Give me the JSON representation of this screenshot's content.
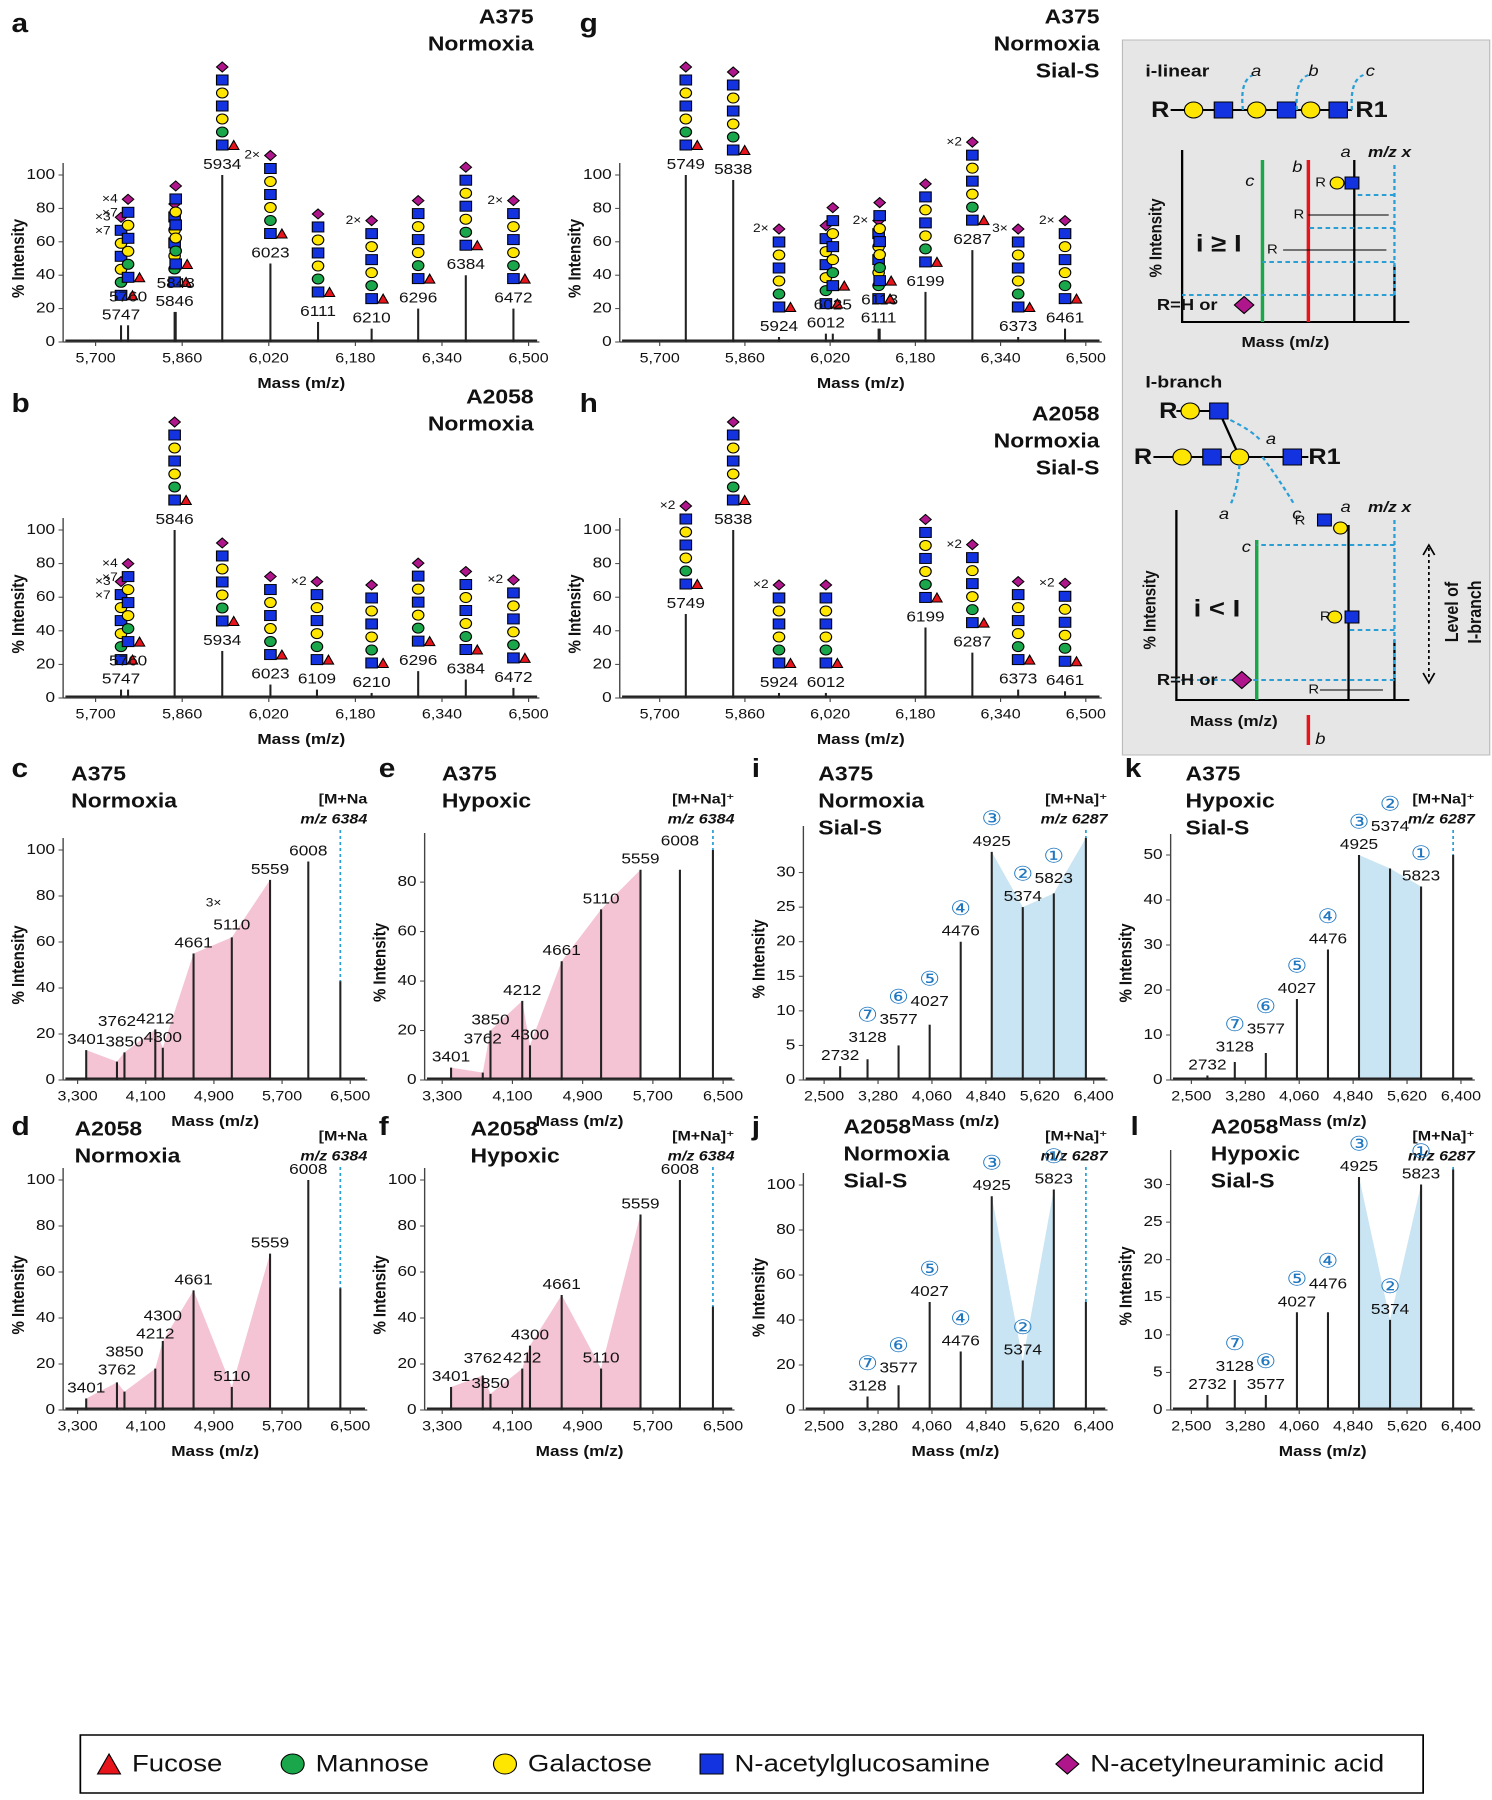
{
  "chart_data": [
    {
      "type": "spectrum",
      "letter": "a",
      "title": [
        "A375",
        "Normoxia"
      ],
      "x_label": "Mass (m/z)",
      "y_label": "% Intensity",
      "color": "#222222",
      "x": [
        5747,
        5760,
        5846,
        5848,
        5934,
        6023,
        6111,
        6210,
        6296,
        6384,
        6472
      ],
      "values": [
        10,
        10,
        18,
        18,
        100,
        47,
        12,
        8,
        20,
        40,
        20
      ],
      "notes": [
        [
          "×3",
          "×7"
        ],
        [
          "×4",
          "×7"
        ],
        null,
        null,
        null,
        [
          "2×"
        ],
        null,
        [
          "2×"
        ],
        null,
        null,
        [
          "2×"
        ]
      ],
      "xlim": [
        5640,
        6520
      ],
      "ylim": [
        0,
        100
      ],
      "xticks": [
        {
          "value": 5700,
          "label": "5,700"
        },
        {
          "value": 5860,
          "label": "5,860"
        },
        {
          "value": 6020,
          "label": "6,020"
        },
        {
          "value": 6180,
          "label": "6,180"
        },
        {
          "value": 6340,
          "label": "6,340"
        },
        {
          "value": 6500,
          "label": "6,500"
        }
      ],
      "yticks": [
        0,
        20,
        40,
        60,
        80,
        100
      ]
    },
    {
      "type": "spectrum",
      "letter": "b",
      "title": [
        "A2058",
        "Normoxia"
      ],
      "x_label": "Mass (m/z)",
      "y_label": "% Intensity",
      "color": "#222222",
      "x": [
        5747,
        5760,
        5846,
        5934,
        6023,
        6109,
        6210,
        6296,
        6384,
        6472
      ],
      "values": [
        5,
        5,
        100,
        28,
        8,
        5,
        3,
        16,
        11,
        6
      ],
      "notes": [
        [
          "×3",
          "×7"
        ],
        [
          "×4",
          "×7"
        ],
        null,
        null,
        null,
        [
          "×2"
        ],
        null,
        null,
        null,
        [
          "×2"
        ]
      ],
      "xlim": [
        5640,
        6520
      ],
      "ylim": [
        0,
        100
      ],
      "xticks": [
        {
          "value": 5700,
          "label": "5,700"
        },
        {
          "value": 5860,
          "label": "5,860"
        },
        {
          "value": 6020,
          "label": "6,020"
        },
        {
          "value": 6180,
          "label": "6,180"
        },
        {
          "value": 6340,
          "label": "6,340"
        },
        {
          "value": 6500,
          "label": "6,500"
        }
      ],
      "yticks": [
        0,
        20,
        40,
        60,
        80,
        100
      ]
    },
    {
      "type": "spectrum",
      "letter": "c",
      "title": [
        "A375",
        "Normoxia"
      ],
      "ion": [
        "[M+Na",
        "m/z 6384"
      ],
      "x_label": "Mass (m/z)",
      "y_label": "% Intensity",
      "color": "#222222",
      "x": [
        3401,
        3762,
        3850,
        4212,
        4300,
        4661,
        5110,
        5559,
        6008,
        6384
      ],
      "values": [
        13,
        8,
        12,
        22,
        14,
        55,
        62,
        87,
        95,
        43
      ],
      "notes": [
        null,
        null,
        null,
        null,
        null,
        null,
        [
          "3×"
        ],
        null,
        null,
        null
      ],
      "shade": {
        "color": "#f2b8cd",
        "range": [
          3401,
          5559
        ]
      },
      "xlim": [
        3130,
        6700
      ],
      "ylim": [
        0,
        100
      ],
      "xticks": [
        {
          "value": 3300,
          "label": "3,300"
        },
        {
          "value": 4100,
          "label": "4,100"
        },
        {
          "value": 4900,
          "label": "4,900"
        },
        {
          "value": 5700,
          "label": "5,700"
        },
        {
          "value": 6500,
          "label": "6,500"
        }
      ],
      "yticks": [
        0,
        20,
        40,
        60,
        80,
        100
      ]
    },
    {
      "type": "spectrum",
      "letter": "d",
      "title": [
        "A2058",
        "Normoxia"
      ],
      "ion": [
        "[M+Na",
        "m/z 6384"
      ],
      "x_label": "Mass (m/z)",
      "y_label": "% Intensity",
      "color": "#222222",
      "x": [
        3401,
        3762,
        3850,
        4212,
        4300,
        4661,
        5110,
        5559,
        6008,
        6384
      ],
      "values": [
        5,
        12,
        8,
        18,
        30,
        52,
        10,
        68,
        100,
        53
      ],
      "shade": {
        "color": "#f2b8cd",
        "range": [
          3401,
          5559
        ]
      },
      "xlim": [
        3130,
        6700
      ],
      "ylim": [
        0,
        100
      ],
      "xticks": [
        {
          "value": 3300,
          "label": "3,300"
        },
        {
          "value": 4100,
          "label": "4,100"
        },
        {
          "value": 4900,
          "label": "4,900"
        },
        {
          "value": 5700,
          "label": "5,700"
        },
        {
          "value": 6500,
          "label": "6,500"
        }
      ],
      "yticks": [
        0,
        20,
        40,
        60,
        80,
        100
      ]
    },
    {
      "type": "spectrum",
      "letter": "e",
      "title": [
        "A375",
        "Hypoxic"
      ],
      "ion": [
        "[M+Na]⁺",
        "m/z 6384"
      ],
      "x_label": "Mass (m/z)",
      "y_label": "% Intensity",
      "color": "#222222",
      "x": [
        3401,
        3762,
        3850,
        4212,
        4300,
        4661,
        5110,
        5559,
        6008,
        6384
      ],
      "values": [
        5,
        3,
        20,
        32,
        14,
        48,
        69,
        85,
        85,
        93
      ],
      "shade": {
        "color": "#f2b8cd",
        "range": [
          3401,
          5559
        ]
      },
      "xlim": [
        3100,
        6630
      ],
      "ylim": [
        0,
        95
      ],
      "xticks": [
        {
          "value": 3300,
          "label": "3,300"
        },
        {
          "value": 4100,
          "label": "4,100"
        },
        {
          "value": 4900,
          "label": "4,900"
        },
        {
          "value": 5700,
          "label": "5,700"
        },
        {
          "value": 6500,
          "label": "6,500"
        }
      ],
      "yticks": [
        0,
        20,
        40,
        60,
        80
      ]
    },
    {
      "type": "spectrum",
      "letter": "f",
      "title": [
        "A2058",
        "Hypoxic"
      ],
      "ion": [
        "[M+Na]⁺",
        "m/z 6384"
      ],
      "x_label": "Mass (m/z)",
      "y_label": "% Intensity",
      "color": "#222222",
      "x": [
        3401,
        3762,
        3850,
        4212,
        4300,
        4661,
        5110,
        5559,
        6008,
        6384
      ],
      "values": [
        10,
        15,
        7,
        18,
        28,
        50,
        18,
        85,
        100,
        45
      ],
      "shade": {
        "color": "#f2b8cd",
        "range": [
          3401,
          5559
        ]
      },
      "xlim": [
        3100,
        6630
      ],
      "ylim": [
        0,
        100
      ],
      "xticks": [
        {
          "value": 3300,
          "label": "3,300"
        },
        {
          "value": 4100,
          "label": "4,100"
        },
        {
          "value": 4900,
          "label": "4,900"
        },
        {
          "value": 5700,
          "label": "5,700"
        },
        {
          "value": 6500,
          "label": "6,500"
        }
      ],
      "yticks": [
        0,
        20,
        40,
        60,
        80,
        100
      ]
    },
    {
      "type": "spectrum",
      "letter": "g",
      "title": [
        "A375",
        "Normoxia",
        "Sial-S"
      ],
      "x_label": "Mass (m/z)",
      "y_label": "% Intensity",
      "color": "#222222",
      "x": [
        5749,
        5838,
        5924,
        6012,
        6025,
        6111,
        6113,
        6199,
        6287,
        6373,
        6461
      ],
      "values": [
        100,
        97,
        3,
        5,
        5,
        8,
        8,
        30,
        55,
        3,
        8
      ],
      "notes": [
        null,
        null,
        [
          "2×"
        ],
        null,
        null,
        [
          "2×"
        ],
        null,
        null,
        [
          "×2"
        ],
        [
          "3×"
        ],
        [
          "2×"
        ]
      ],
      "xlim": [
        5625,
        6530
      ],
      "ylim": [
        0,
        100
      ],
      "xticks": [
        {
          "value": 5700,
          "label": "5,700"
        },
        {
          "value": 5860,
          "label": "5,860"
        },
        {
          "value": 6020,
          "label": "6,020"
        },
        {
          "value": 6180,
          "label": "6,180"
        },
        {
          "value": 6340,
          "label": "6,340"
        },
        {
          "value": 6500,
          "label": "6,500"
        }
      ],
      "yticks": [
        0,
        20,
        40,
        60,
        80,
        100
      ]
    },
    {
      "type": "spectrum",
      "letter": "h",
      "title": [
        "A2058",
        "Normoxia",
        "Sial-S"
      ],
      "x_label": "Mass (m/z)",
      "y_label": "% Intensity",
      "color": "#222222",
      "x": [
        5749,
        5838,
        5924,
        6012,
        6199,
        6287,
        6373,
        6461
      ],
      "values": [
        50,
        100,
        3,
        3,
        42,
        27,
        5,
        4
      ],
      "notes": [
        [
          "×2"
        ],
        null,
        [
          "×2"
        ],
        null,
        null,
        [
          "×2"
        ],
        null,
        [
          "×2"
        ]
      ],
      "xlim": [
        5625,
        6530
      ],
      "ylim": [
        0,
        100
      ],
      "xticks": [
        {
          "value": 5700,
          "label": "5,700"
        },
        {
          "value": 5860,
          "label": "5,860"
        },
        {
          "value": 6020,
          "label": "6,020"
        },
        {
          "value": 6180,
          "label": "6,180"
        },
        {
          "value": 6340,
          "label": "6,340"
        },
        {
          "value": 6500,
          "label": "6,500"
        }
      ],
      "yticks": [
        0,
        20,
        40,
        60,
        80,
        100
      ]
    },
    {
      "type": "spectrum",
      "letter": "i",
      "title": [
        "A375",
        "Normoxia",
        "Sial-S"
      ],
      "ion": [
        "[M+Na]⁺",
        "m/z 6287"
      ],
      "x_label": "Mass (m/z)",
      "y_label": "% Intensity",
      "color": "#222222",
      "x": [
        2732,
        3128,
        3577,
        4027,
        4476,
        4925,
        5374,
        5823,
        6287
      ],
      "values": [
        2,
        3,
        5,
        8,
        20,
        33,
        25,
        27,
        35
      ],
      "tags": [
        null,
        "⑦",
        "⑥",
        "⑤",
        "④",
        "③",
        "②",
        "①",
        null
      ],
      "shade": {
        "color": "#bfdff0",
        "range": [
          4925,
          6287
        ]
      },
      "xlim": [
        2200,
        6600
      ],
      "ylim": [
        0,
        35
      ],
      "xticks": [
        {
          "value": 2500,
          "label": "2,500"
        },
        {
          "value": 3280,
          "label": "3,280"
        },
        {
          "value": 4060,
          "label": "4,060"
        },
        {
          "value": 4840,
          "label": "4,840"
        },
        {
          "value": 5620,
          "label": "5,620"
        },
        {
          "value": 6400,
          "label": "6,400"
        }
      ],
      "yticks": [
        0,
        5,
        10,
        15,
        20,
        25,
        30
      ]
    },
    {
      "type": "spectrum",
      "letter": "j",
      "title": [
        "A2058",
        "Normoxia",
        "Sial-S"
      ],
      "ion": [
        "[M+Na]⁺",
        "m/z 6287"
      ],
      "x_label": "Mass (m/z)",
      "y_label": "% Intensity",
      "color": "#222222",
      "x": [
        3128,
        3577,
        4027,
        4476,
        4925,
        5374,
        5823,
        6287
      ],
      "values": [
        6,
        11,
        48,
        26,
        95,
        22,
        98,
        48
      ],
      "tags": [
        "⑦",
        "⑥",
        "⑤",
        "④",
        "③",
        "②",
        "①",
        null
      ],
      "shade": {
        "color": "#bfdff0",
        "range": [
          4925,
          5823
        ]
      },
      "xlim": [
        2200,
        6600
      ],
      "ylim": [
        0,
        100
      ],
      "xticks": [
        {
          "value": 2500,
          "label": "2,500"
        },
        {
          "value": 3280,
          "label": "3,280"
        },
        {
          "value": 4060,
          "label": "4,060"
        },
        {
          "value": 4840,
          "label": "4,840"
        },
        {
          "value": 5620,
          "label": "5,620"
        },
        {
          "value": 6400,
          "label": "6,400"
        }
      ],
      "yticks": [
        0,
        20,
        40,
        60,
        80,
        100
      ]
    },
    {
      "type": "spectrum",
      "letter": "k",
      "title": [
        "A375",
        "Hypoxic",
        "Sial-S"
      ],
      "ion": [
        "[M+Na]⁺",
        "m/z 6287"
      ],
      "x_label": "Mass (m/z)",
      "y_label": "% Intensity",
      "color": "#222222",
      "x": [
        2732,
        3128,
        3577,
        4027,
        4476,
        4925,
        5374,
        5823,
        6287
      ],
      "values": [
        1,
        4,
        6,
        18,
        29,
        50,
        47,
        43,
        50
      ],
      "tags": [
        null,
        "⑦",
        "⑥",
        "⑤",
        "④",
        "③",
        "②",
        "①",
        null
      ],
      "shade": {
        "color": "#bfdff0",
        "range": [
          4925,
          5823
        ]
      },
      "xlim": [
        2200,
        6600
      ],
      "ylim": [
        0,
        52
      ],
      "xticks": [
        {
          "value": 2500,
          "label": "2,500"
        },
        {
          "value": 3280,
          "label": "3,280"
        },
        {
          "value": 4060,
          "label": "4,060"
        },
        {
          "value": 4840,
          "label": "4,840"
        },
        {
          "value": 5620,
          "label": "5,620"
        },
        {
          "value": 6400,
          "label": "6,400"
        }
      ],
      "yticks": [
        0,
        10,
        20,
        30,
        40,
        50
      ]
    },
    {
      "type": "spectrum",
      "letter": "l",
      "title": [
        "A2058",
        "Hypoxic",
        "Sial-S"
      ],
      "ion": [
        "[M+Na]⁺",
        "m/z 6287"
      ],
      "x_label": "Mass (m/z)",
      "y_label": "% Intensity",
      "color": "#222222",
      "x": [
        2732,
        3128,
        3577,
        4027,
        4476,
        4925,
        5374,
        5823,
        6287
      ],
      "values": [
        2,
        4,
        2,
        13,
        13,
        31,
        12,
        30,
        32
      ],
      "tags": [
        null,
        "⑦",
        "⑥",
        "⑤",
        "④",
        "③",
        "②",
        "①",
        null
      ],
      "shade": {
        "color": "#bfdff0",
        "range": [
          4925,
          5823
        ]
      },
      "xlim": [
        2200,
        6600
      ],
      "ylim": [
        0,
        33
      ],
      "xticks": [
        {
          "value": 2500,
          "label": "2,500"
        },
        {
          "value": 3280,
          "label": "3,280"
        },
        {
          "value": 4060,
          "label": "4,060"
        },
        {
          "value": 4840,
          "label": "4,840"
        },
        {
          "value": 5620,
          "label": "5,620"
        },
        {
          "value": 6400,
          "label": "6,400"
        }
      ],
      "yticks": [
        0,
        5,
        10,
        15,
        20,
        25,
        30
      ]
    }
  ],
  "schematic": {
    "linear": {
      "title": "i-linear",
      "cuts": [
        "a",
        "b",
        "c"
      ],
      "r": "R",
      "r1": "R1",
      "plot": {
        "y_label": "% Intensity",
        "x_label": "Mass (m/z)",
        "rule": "i ≥ I",
        "lines": [
          "c",
          "b",
          "a",
          "m/z x"
        ],
        "r_groups": [
          "R",
          "R",
          "R"
        ],
        "r_note": "R=H or"
      }
    },
    "branch": {
      "title": "I-branch",
      "r_groups": [
        "R",
        "R"
      ],
      "r1": "R1",
      "cuts": [
        "a",
        "a",
        "c"
      ],
      "plot": {
        "y_label": "% Intensity",
        "x_label": "Mass (m/z)",
        "rule": "i < I",
        "lines": [
          "a",
          "m/z x",
          "c",
          "b"
        ],
        "r_groups": [
          "R",
          "R",
          "R"
        ],
        "r_note": "R=H or",
        "side": [
          "Level of",
          "I-branch"
        ]
      }
    }
  },
  "legend": [
    {
      "name": "Fucose",
      "color": "#e8141b",
      "shape": "triangle"
    },
    {
      "name": "Mannose",
      "color": "#1aa64a",
      "shape": "circle"
    },
    {
      "name": "Galactose",
      "color": "#ffe600",
      "shape": "circle"
    },
    {
      "name": "N-acetylglucosamine",
      "color": "#1433e0",
      "shape": "square"
    },
    {
      "name": "N-acetylneuraminic acid",
      "color": "#b0168c",
      "shape": "diamond"
    }
  ]
}
